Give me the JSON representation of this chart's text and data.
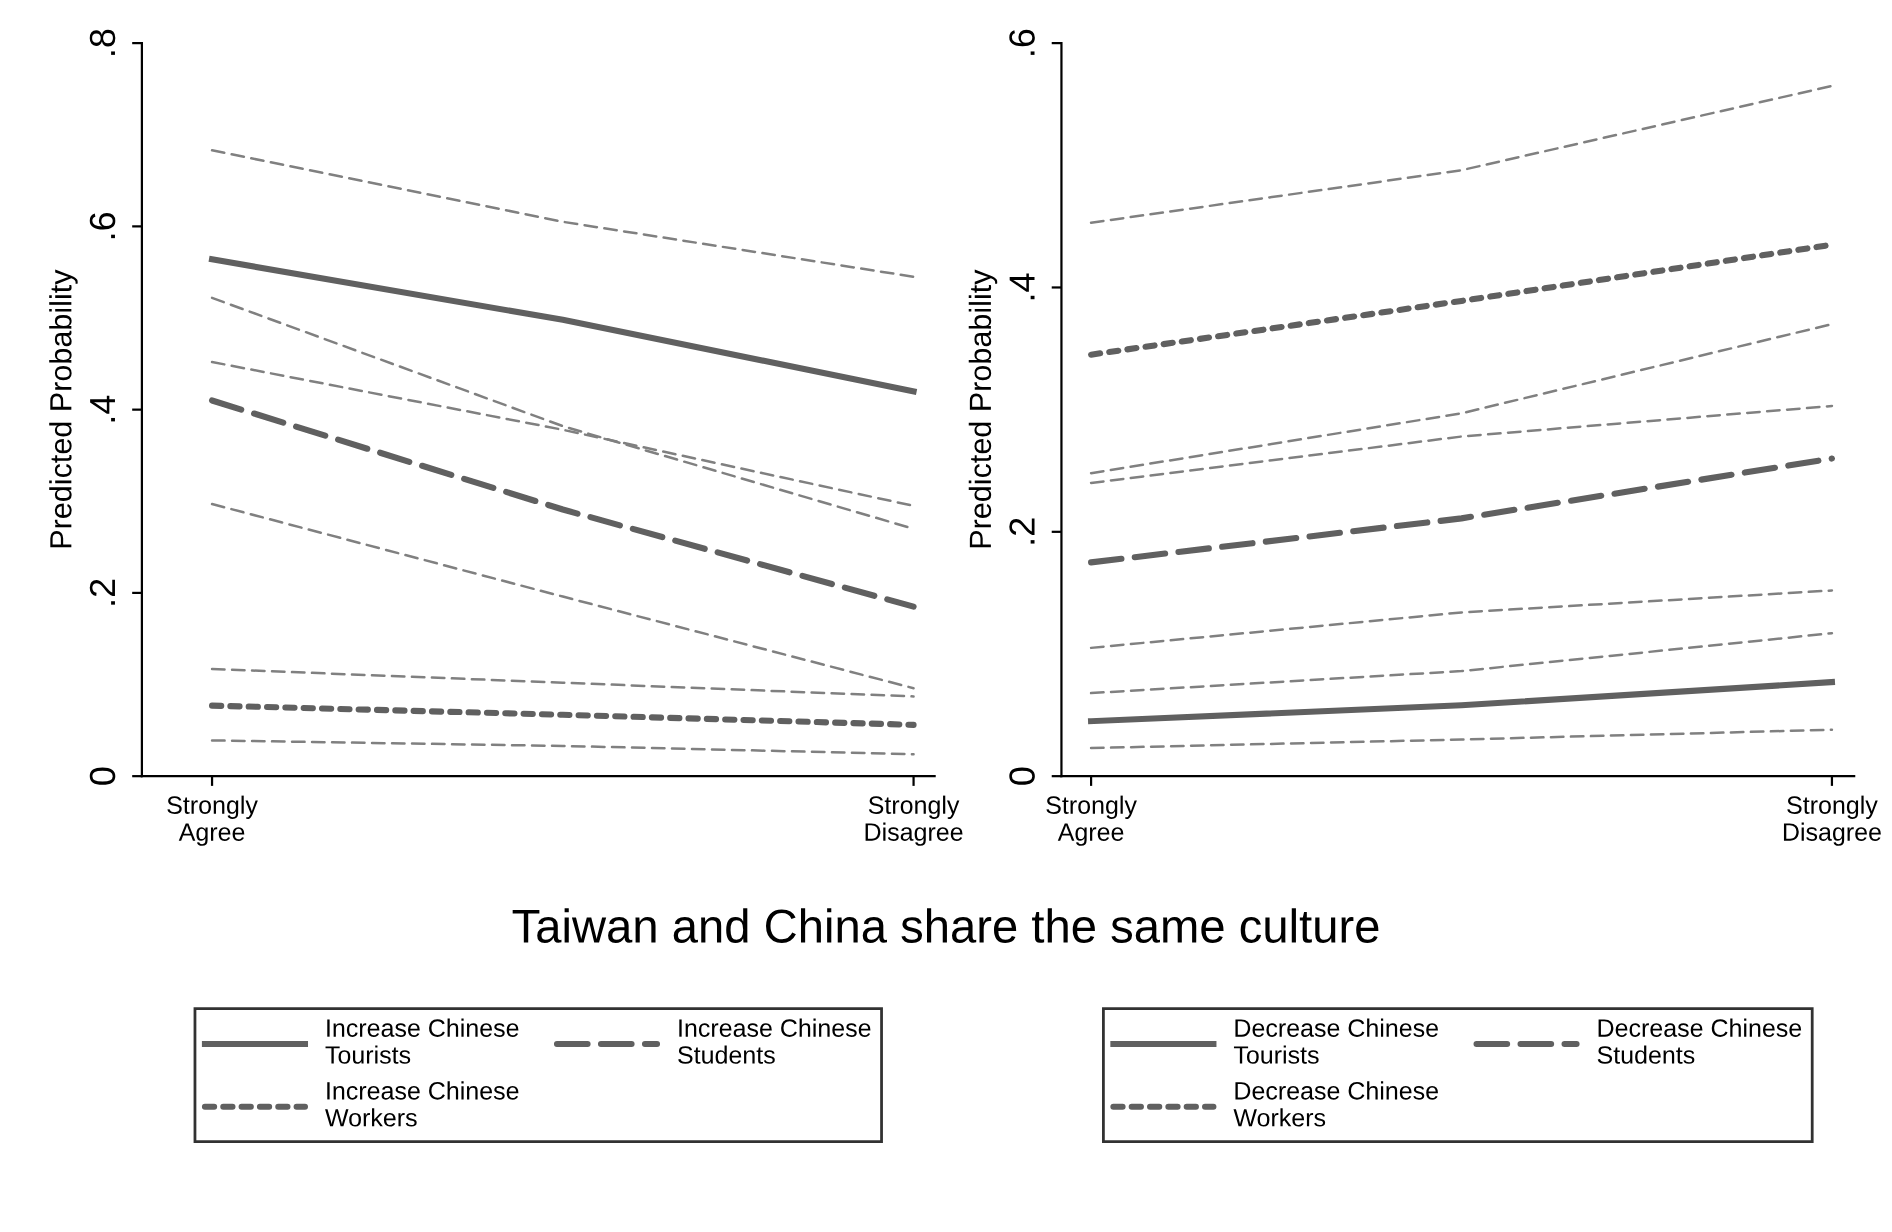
{
  "chart_data": [
    {
      "type": "line",
      "xlabel": "Taiwan and China share the same culture",
      "ylabel": "Predicted Probability",
      "categories": [
        "Strongly\nAgree",
        null,
        "Strongly\nDisagree"
      ],
      "ylim": [
        0,
        0.8
      ],
      "yticks": [
        {
          "value": 0,
          "label": "0"
        },
        {
          "value": 0.2,
          "label": ".2"
        },
        {
          "value": 0.4,
          "label": ".4"
        },
        {
          "value": 0.6,
          "label": ".6"
        },
        {
          "value": 0.8,
          "label": ".8"
        }
      ],
      "grid": false,
      "legend": "bottom",
      "series": [
        {
          "name": "Increase Chinese Tourists",
          "color": "#606060",
          "line_style": "solid",
          "values": [
            0.564,
            0.498,
            0.42
          ]
        },
        {
          "name": "Increase Chinese Students",
          "color": "#606060",
          "line_style": "dashed",
          "values": [
            0.41,
            0.291,
            0.185
          ]
        },
        {
          "name": "Increase Chinese Workers",
          "color": "#606060",
          "line_style": "dotted",
          "values": [
            0.077,
            0.067,
            0.056
          ]
        },
        {
          "color": "#808080",
          "line_style": "dashed",
          "values": [
            0.452,
            0.378,
            0.295
          ]
        },
        {
          "color": "#808080",
          "line_style": "dashed",
          "values": [
            0.683,
            0.605,
            0.545
          ]
        },
        {
          "color": "#808080",
          "line_style": "dashed",
          "values": [
            0.297,
            0.196,
            0.096
          ]
        },
        {
          "color": "#808080",
          "line_style": "dashed",
          "values": [
            0.522,
            0.382,
            0.27
          ]
        },
        {
          "color": "#808080",
          "line_style": "dashed",
          "values": [
            0.039,
            0.033,
            0.024
          ]
        },
        {
          "color": "#808080",
          "line_style": "dashed",
          "values": [
            0.117,
            0.102,
            0.087
          ]
        }
      ]
    },
    {
      "type": "line",
      "ylabel": "Predicted Probability",
      "categories": [
        "Strongly\nAgree",
        null,
        "Strongly\nDisagree"
      ],
      "ylim": [
        0,
        0.6
      ],
      "yticks": [
        {
          "value": 0,
          "label": "0"
        },
        {
          "value": 0.2,
          "label": ".2"
        },
        {
          "value": 0.4,
          "label": ".4"
        },
        {
          "value": 0.6,
          "label": ".6"
        }
      ],
      "grid": false,
      "legend": "bottom",
      "series": [
        {
          "name": "Decrease Chinese Tourists",
          "color": "#606060",
          "line_style": "solid",
          "values": [
            0.045,
            0.058,
            0.077
          ]
        },
        {
          "name": "Decrease Chinese Students",
          "color": "#606060",
          "line_style": "dashed",
          "values": [
            0.175,
            0.211,
            0.26
          ]
        },
        {
          "name": "Decrease Chinese Workers",
          "color": "#606060",
          "line_style": "dotted",
          "values": [
            0.345,
            0.389,
            0.435
          ]
        },
        {
          "color": "#808080",
          "line_style": "dashed",
          "values": [
            0.023,
            0.03,
            0.038
          ]
        },
        {
          "color": "#808080",
          "line_style": "dashed",
          "values": [
            0.068,
            0.086,
            0.117
          ]
        },
        {
          "color": "#808080",
          "line_style": "dashed",
          "values": [
            0.105,
            0.134,
            0.152
          ]
        },
        {
          "color": "#808080",
          "line_style": "dashed",
          "values": [
            0.248,
            0.297,
            0.37
          ]
        },
        {
          "color": "#808080",
          "line_style": "dashed",
          "values": [
            0.24,
            0.278,
            0.303
          ]
        },
        {
          "color": "#808080",
          "line_style": "dashed",
          "values": [
            0.453,
            0.496,
            0.565
          ]
        }
      ]
    }
  ]
}
